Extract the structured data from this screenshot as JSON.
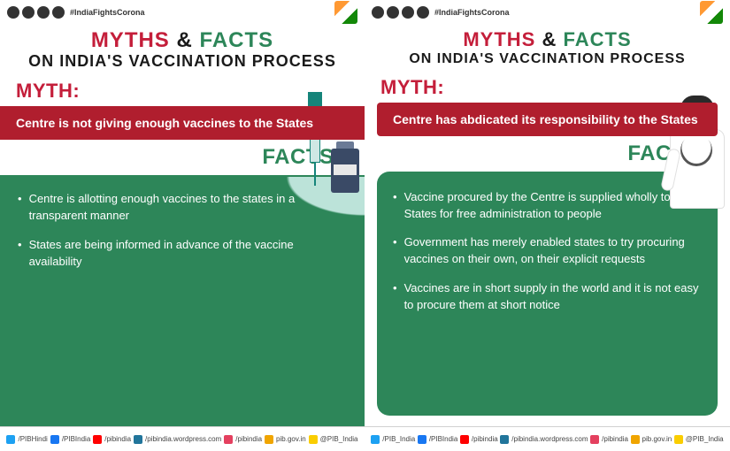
{
  "shared": {
    "hashtag": "#IndiaFightsCorona",
    "title_myths": "MYTHS",
    "title_amp": "&",
    "title_facts": "FACTS",
    "title_sub_on": "ON",
    "title_sub_rest": "INDIA'S VACCINATION PROCESS",
    "myth_label": "MYTH:",
    "facts_label": "FACTS:",
    "footer": [
      {
        "icon": "tw",
        "text": "/PIB_India"
      },
      {
        "icon": "fb",
        "text": "/PIBIndia"
      },
      {
        "icon": "yt",
        "text": "/pibindia"
      },
      {
        "icon": "wp",
        "text": "/pibindia.wordpress.com"
      },
      {
        "icon": "ig",
        "text": "/pibindia"
      },
      {
        "icon": "web",
        "text": "pib.gov.in"
      },
      {
        "icon": "koo",
        "text": "@PIB_India"
      }
    ],
    "footer_left_variant": [
      {
        "icon": "tw",
        "text": "/PIBHindi"
      },
      {
        "icon": "fb",
        "text": "/PIBIndia"
      },
      {
        "icon": "yt",
        "text": "/pibindia"
      },
      {
        "icon": "wp",
        "text": "/pibindia.wordpress.com"
      },
      {
        "icon": "ig",
        "text": "/pibindia"
      },
      {
        "icon": "web",
        "text": "pib.gov.in"
      },
      {
        "icon": "koo",
        "text": "@PIB_India"
      }
    ]
  },
  "left": {
    "myth_text": "Centre is not giving enough vaccines to the States",
    "facts": [
      "Centre is allotting enough vaccines to the states in a transparent manner",
      "States are being informed in advance of the vaccine availability"
    ]
  },
  "right": {
    "myth_text": "Centre has abdicated its responsibility to the States",
    "facts": [
      "Vaccine procured by the Centre is supplied wholly to the States for free administration to people",
      "Government has merely enabled states to try procuring vaccines on their own, on their explicit requests",
      "Vaccines are in short supply in the world and it is not easy to procure them at short notice"
    ]
  },
  "colors": {
    "myth_red": "#c41e3a",
    "myth_strip": "#b01e2e",
    "facts_green": "#2d8659",
    "black": "#1a1a1a"
  }
}
